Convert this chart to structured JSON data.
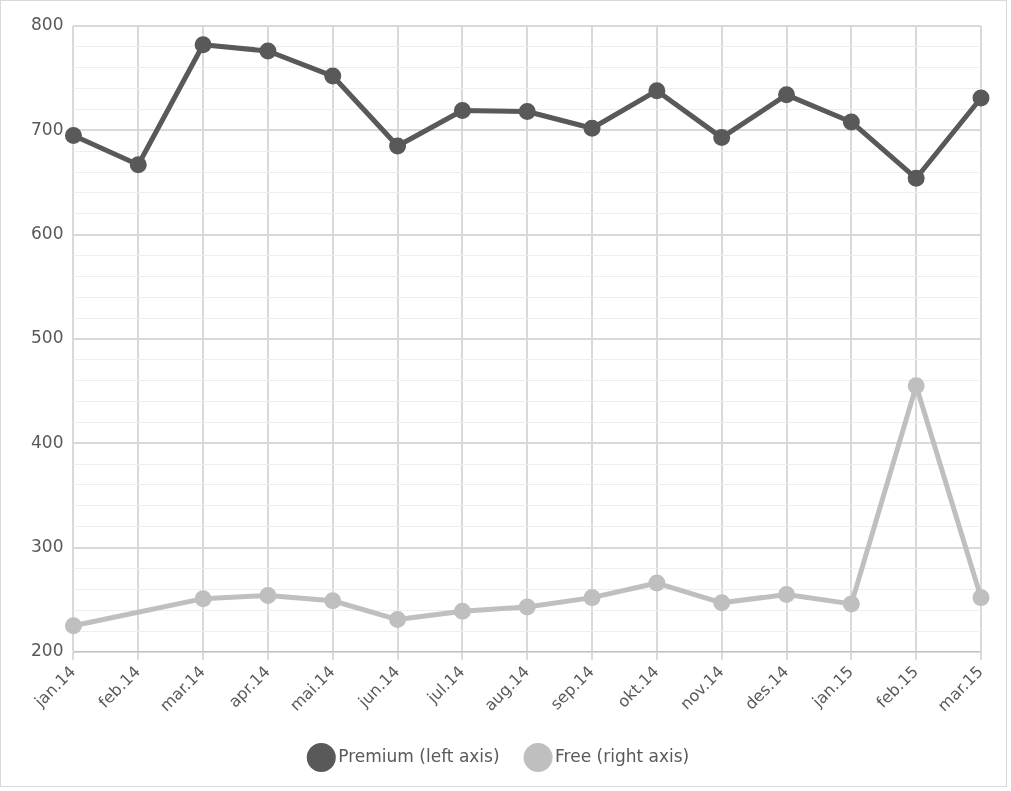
{
  "chart_data": {
    "type": "line",
    "categories": [
      "jan.14",
      "feb.14",
      "mar.14",
      "apr.14",
      "mai.14",
      "jun.14",
      "jul.14",
      "aug.14",
      "sep.14",
      "okt.14",
      "nov.14",
      "des.14",
      "jan.15",
      "feb.15",
      "mar.15"
    ],
    "series": [
      {
        "name": "Premium (left axis)",
        "color": "#595959",
        "values": [
          695,
          667,
          782,
          776,
          752,
          685,
          719,
          718,
          702,
          738,
          693,
          734,
          708,
          654,
          731
        ]
      },
      {
        "name": "Free (right axis)",
        "color": "#bfbfbf",
        "values": [
          225,
          null,
          251,
          254,
          249,
          231,
          239,
          243,
          252,
          266,
          247,
          255,
          246,
          455,
          252
        ]
      }
    ],
    "ylim": [
      200,
      800
    ],
    "yticks": [
      200,
      {
        "value": 220,
        "label": null
      },
      {
        "value": 240,
        "label": null
      },
      {
        "value": 260,
        "label": null
      },
      {
        "value": 280,
        "label": null
      },
      300,
      {
        "value": 320,
        "label": null
      },
      {
        "value": 340,
        "label": null
      },
      {
        "value": 360,
        "label": null
      },
      {
        "value": 380,
        "label": null
      },
      400,
      {
        "value": 420,
        "label": null
      },
      {
        "value": 440,
        "label": null
      },
      {
        "value": 460,
        "label": null
      },
      {
        "value": 480,
        "label": null
      },
      500,
      {
        "value": 520,
        "label": null
      },
      {
        "value": 540,
        "label": null
      },
      {
        "value": 560,
        "label": null
      },
      {
        "value": 580,
        "label": null
      },
      600,
      {
        "value": 620,
        "label": null
      },
      {
        "value": 640,
        "label": null
      },
      {
        "value": 660,
        "label": null
      },
      {
        "value": 680,
        "label": null
      },
      700,
      {
        "value": 720,
        "label": null
      },
      {
        "value": 740,
        "label": null
      },
      {
        "value": 760,
        "label": null
      },
      {
        "value": 780,
        "label": null
      },
      800
    ],
    "grid": true,
    "legend": "bottom",
    "marker": "circle",
    "line_style": "solid"
  }
}
